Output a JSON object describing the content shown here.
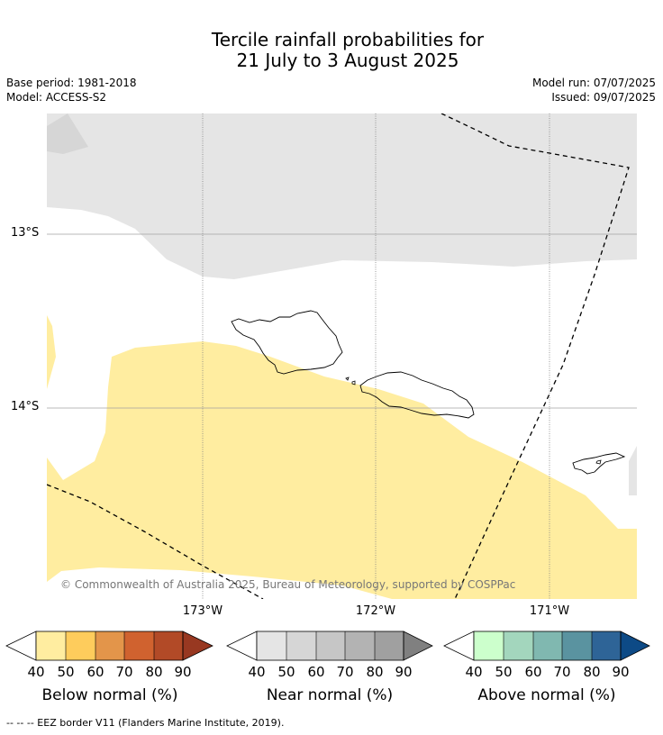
{
  "title_line1": "Tercile rainfall probabilities for",
  "title_line2": "21 July to 3 August 2025",
  "base_period": "Base period: 1981-2018",
  "model": "Model: ACCESS-S2",
  "model_run": "Model run: 07/07/2025",
  "issued": "Issued: 09/07/2025",
  "map": {
    "lat_labels": [
      "13°S",
      "14°S"
    ],
    "lon_labels": [
      "173°W",
      "172°W",
      "171°W"
    ],
    "copyright": "© Commonwealth of Australia 2025, Bureau of Meteorology, supported by COSPPac",
    "colors": {
      "near_normal_40": "#e5e5e5",
      "near_normal_50": "#d6d6d6",
      "below_normal_40": "#ffeda0",
      "island_outline": "#000000",
      "eez_border": "#000000",
      "gridline": "#808080"
    }
  },
  "legends": {
    "below": {
      "title": "Below normal (%)",
      "ticks": [
        "40",
        "50",
        "60",
        "70",
        "80",
        "90"
      ],
      "colors": [
        "#ffeda0",
        "#fecc5c",
        "#e3954a",
        "#d0622f",
        "#b24a27",
        "#983821"
      ]
    },
    "near": {
      "title": "Near normal (%)",
      "ticks": [
        "40",
        "50",
        "60",
        "70",
        "80",
        "90"
      ],
      "colors": [
        "#e5e5e5",
        "#d6d6d6",
        "#c6c6c6",
        "#b3b3b3",
        "#a0a0a0",
        "#808080"
      ]
    },
    "above": {
      "title": "Above normal (%)",
      "ticks": [
        "40",
        "50",
        "60",
        "70",
        "80",
        "90"
      ],
      "colors": [
        "#ccffcc",
        "#a3d6bd",
        "#80b8b0",
        "#5a93a0",
        "#2e6497",
        "#0d4a86"
      ]
    }
  },
  "footnote": "--  --  -- EEZ border V11 (Flanders Marine Institute, 2019)."
}
